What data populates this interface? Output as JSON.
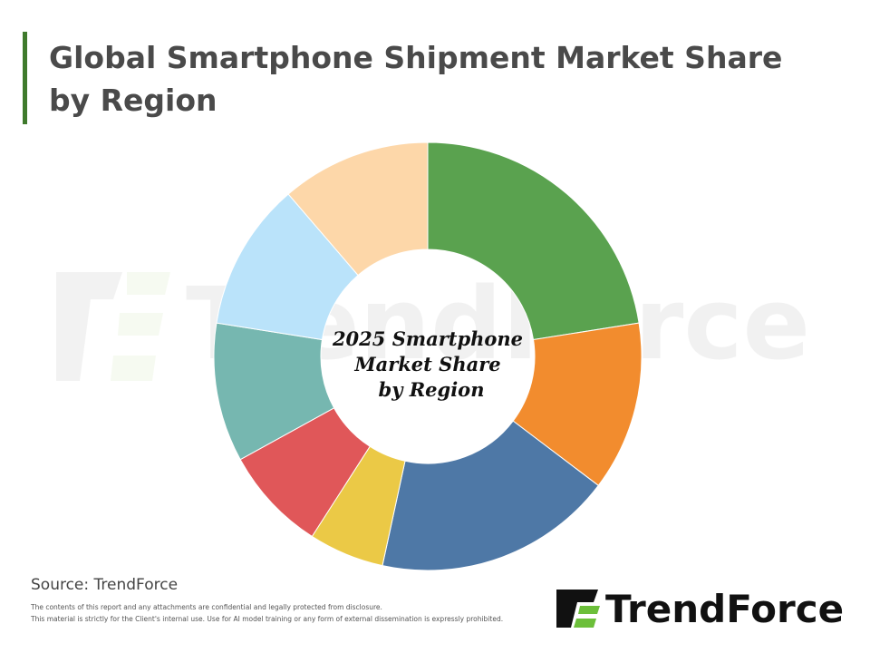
{
  "header": {
    "title_lines": [
      "Global Smartphone Shipment Market Share",
      "by Region"
    ]
  },
  "chart_data": {
    "type": "donut",
    "center_label": [
      "2025 Smartphone",
      "Market Share",
      "by Region"
    ],
    "values": [
      22.5,
      12.8,
      18.1,
      5.7,
      7.9,
      10.5,
      11.2,
      11.3
    ],
    "colors": [
      "#5aa24f",
      "#f28c2e",
      "#4e78a6",
      "#ebc946",
      "#e05759",
      "#76b7b0",
      "#bae3fa",
      "#fdd7a9"
    ],
    "start_angle": 0,
    "direction": "clockwise"
  },
  "footer": {
    "source": "Source: TrendForce",
    "disclaimer": [
      "The contents of this report and any attachments are confidential and legally protected from disclosure.",
      "This material is strictly for the Client's internal use. Use for AI model training or any form of external dissemination is expressly prohibited."
    ],
    "logo_text": "TrendForce"
  }
}
